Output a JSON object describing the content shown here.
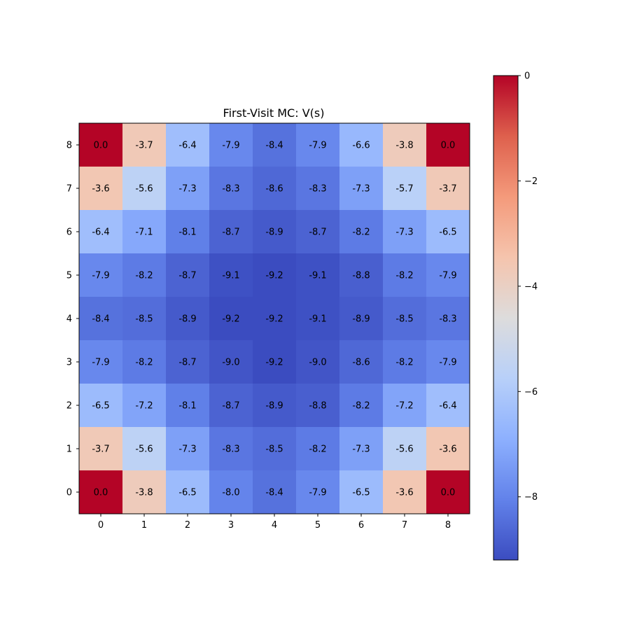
{
  "chart_data": {
    "type": "heatmap",
    "title": "First-Visit MC: V(s)",
    "xlabel": "",
    "ylabel": "",
    "x_ticks": [
      "0",
      "1",
      "2",
      "3",
      "4",
      "5",
      "6",
      "7",
      "8"
    ],
    "y_ticks": [
      "0",
      "1",
      "2",
      "3",
      "4",
      "5",
      "6",
      "7",
      "8"
    ],
    "rows_top_to_bottom": [
      8,
      7,
      6,
      5,
      4,
      3,
      2,
      1,
      0
    ],
    "values": [
      [
        0.0,
        -3.7,
        -6.4,
        -7.9,
        -8.4,
        -7.9,
        -6.6,
        -3.8,
        0.0
      ],
      [
        -3.6,
        -5.6,
        -7.3,
        -8.3,
        -8.6,
        -8.3,
        -7.3,
        -5.7,
        -3.7
      ],
      [
        -6.4,
        -7.1,
        -8.1,
        -8.7,
        -8.9,
        -8.7,
        -8.2,
        -7.3,
        -6.5
      ],
      [
        -7.9,
        -8.2,
        -8.7,
        -9.1,
        -9.2,
        -9.1,
        -8.8,
        -8.2,
        -7.9
      ],
      [
        -8.4,
        -8.5,
        -8.9,
        -9.2,
        -9.2,
        -9.1,
        -8.9,
        -8.5,
        -8.3
      ],
      [
        -7.9,
        -8.2,
        -8.7,
        -9.0,
        -9.2,
        -9.0,
        -8.6,
        -8.2,
        -7.9
      ],
      [
        -6.5,
        -7.2,
        -8.1,
        -8.7,
        -8.9,
        -8.8,
        -8.2,
        -7.2,
        -6.4
      ],
      [
        -3.7,
        -5.6,
        -7.3,
        -8.3,
        -8.5,
        -8.2,
        -7.3,
        -5.6,
        -3.6
      ],
      [
        0.0,
        -3.8,
        -6.5,
        -8.0,
        -8.4,
        -7.9,
        -6.5,
        -3.6,
        0.0
      ]
    ],
    "colormap": "coolwarm",
    "vmin": -9.2,
    "vmax": 0,
    "colorbar_ticks": [
      0,
      -2,
      -4,
      -6,
      -8
    ],
    "colorbar_tick_labels": [
      "0",
      "−2",
      "−4",
      "−6",
      "−8"
    ]
  }
}
